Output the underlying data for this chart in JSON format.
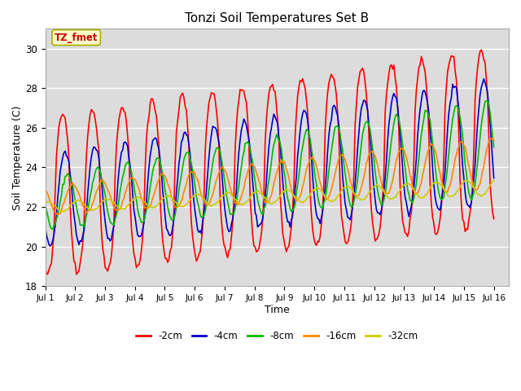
{
  "title": "Tonzi Soil Temperatures Set B",
  "xlabel": "Time",
  "ylabel": "Soil Temperature (C)",
  "ylim": [
    18,
    31
  ],
  "yticks": [
    18,
    20,
    22,
    24,
    26,
    28,
    30
  ],
  "x_tick_labels": [
    "Jul 1",
    "Jul 2",
    "Jul 3",
    "Jul 4",
    "Jul 5",
    "Jul 6",
    "Jul 7",
    "Jul 8",
    "Jul 9",
    "Jul 10",
    "Jul 11",
    "Jul 12",
    "Jul 13",
    "Jul 14",
    "Jul 15",
    "Jul 16"
  ],
  "bg_color": "#dcdcdc",
  "annotation_text": "TZ_fmet",
  "annotation_box_facecolor": "#ffffcc",
  "annotation_text_color": "#cc0000",
  "annotation_edge_color": "#aaaa00",
  "series_colors": {
    "-2cm": "#ff0000",
    "-4cm": "#0000cc",
    "-8cm": "#00bb00",
    "-16cm": "#ff8800",
    "-32cm": "#cccc00"
  },
  "legend_labels": [
    "-2cm",
    "-4cm",
    "-8cm",
    "-16cm",
    "-32cm"
  ],
  "linewidth": 1.2,
  "figsize": [
    6.4,
    4.8
  ],
  "dpi": 100
}
